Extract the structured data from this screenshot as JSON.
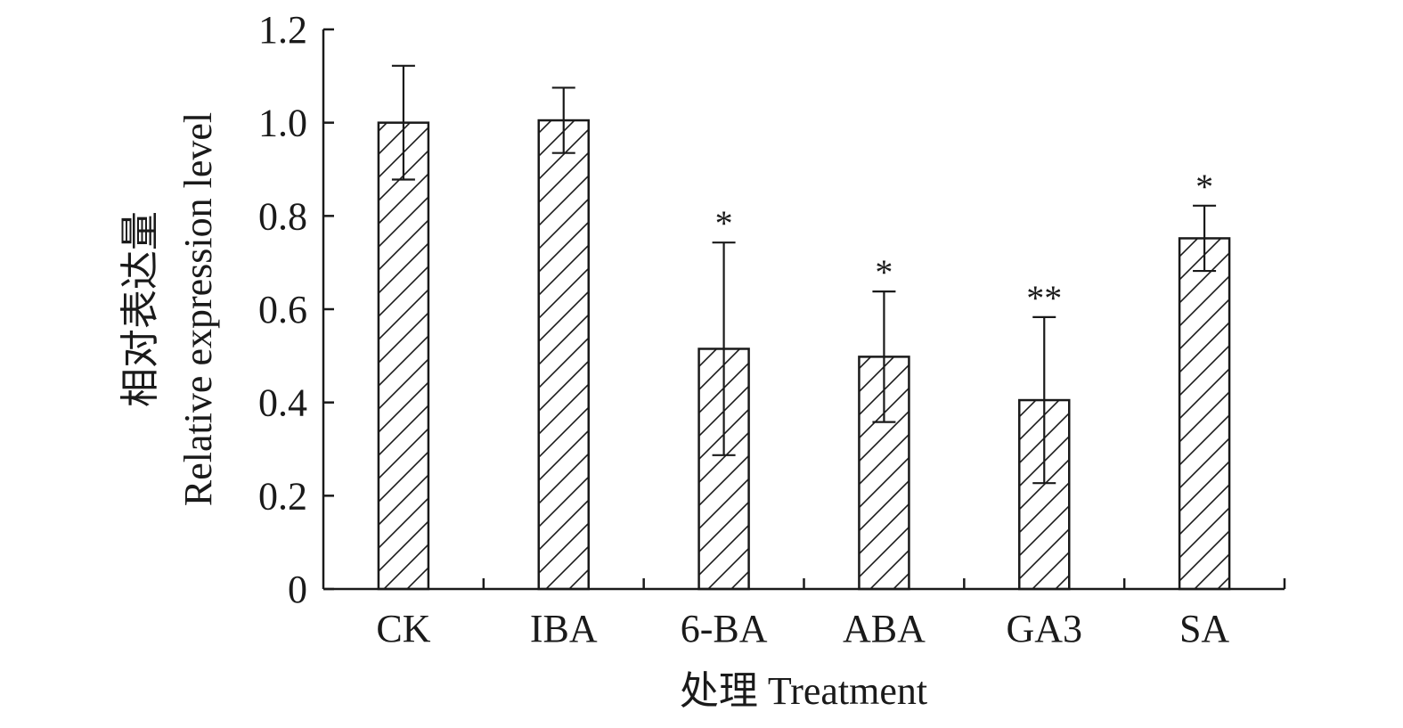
{
  "chart_data": {
    "type": "bar",
    "xlabel": "处理 Treatment",
    "ylabel_line1": "相对表达量",
    "ylabel_line2": "Relative expression level",
    "ylim": [
      0,
      1.2
    ],
    "yticks": [
      "0",
      "0.2",
      "0.4",
      "0.6",
      "0.8",
      "1.0",
      "1.2"
    ],
    "ytick_values": [
      0,
      0.2,
      0.4,
      0.6,
      0.8,
      1.0,
      1.2
    ],
    "categories": [
      "CK",
      "IBA",
      "6-BA",
      "ABA",
      "GA3",
      "SA"
    ],
    "values": [
      1.0,
      1.005,
      0.515,
      0.498,
      0.405,
      0.752
    ],
    "errors": [
      0.122,
      0.07,
      0.228,
      0.14,
      0.178,
      0.07
    ],
    "significance": [
      "",
      "",
      "*",
      "*",
      "**",
      "*"
    ],
    "grid": false,
    "bar_fill": "hatched",
    "colors": {
      "stroke": "#1a1a1a",
      "background": "#ffffff"
    }
  }
}
